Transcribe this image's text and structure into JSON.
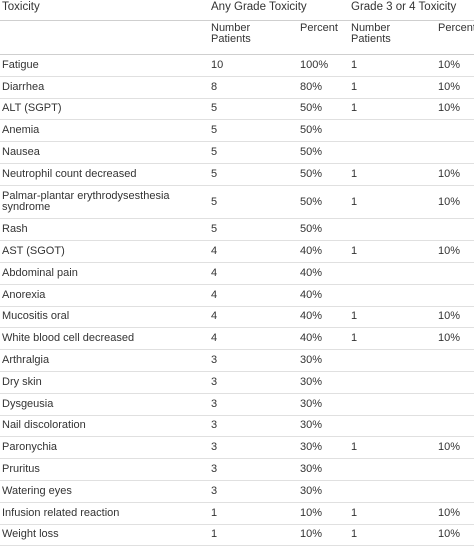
{
  "headers": {
    "toxicity": "Toxicity",
    "group_any": "Any Grade Toxicity",
    "group_grade34": "Grade 3 or 4 Toxicity",
    "number_patients": "Number Patients",
    "percent": "Percent"
  },
  "rows": [
    {
      "toxicity": "Fatigue",
      "any_n": "10",
      "any_pct": "100%",
      "g34_n": "1",
      "g34_pct": "10%"
    },
    {
      "toxicity": "Diarrhea",
      "any_n": "8",
      "any_pct": "80%",
      "g34_n": "1",
      "g34_pct": "10%"
    },
    {
      "toxicity": "ALT (SGPT)",
      "any_n": "5",
      "any_pct": "50%",
      "g34_n": "1",
      "g34_pct": "10%"
    },
    {
      "toxicity": "Anemia",
      "any_n": "5",
      "any_pct": "50%",
      "g34_n": "",
      "g34_pct": ""
    },
    {
      "toxicity": "Nausea",
      "any_n": "5",
      "any_pct": "50%",
      "g34_n": "",
      "g34_pct": ""
    },
    {
      "toxicity": "Neutrophil count decreased",
      "any_n": "5",
      "any_pct": "50%",
      "g34_n": "1",
      "g34_pct": "10%"
    },
    {
      "toxicity": "Palmar-plantar erythrodysesthesia syndrome",
      "any_n": "5",
      "any_pct": "50%",
      "g34_n": "1",
      "g34_pct": "10%"
    },
    {
      "toxicity": "Rash",
      "any_n": "5",
      "any_pct": "50%",
      "g34_n": "",
      "g34_pct": ""
    },
    {
      "toxicity": "AST (SGOT)",
      "any_n": "4",
      "any_pct": "40%",
      "g34_n": "1",
      "g34_pct": "10%"
    },
    {
      "toxicity": "Abdominal pain",
      "any_n": "4",
      "any_pct": "40%",
      "g34_n": "",
      "g34_pct": ""
    },
    {
      "toxicity": "Anorexia",
      "any_n": "4",
      "any_pct": "40%",
      "g34_n": "",
      "g34_pct": ""
    },
    {
      "toxicity": "Mucositis oral",
      "any_n": "4",
      "any_pct": "40%",
      "g34_n": "1",
      "g34_pct": "10%"
    },
    {
      "toxicity": "White blood cell decreased",
      "any_n": "4",
      "any_pct": "40%",
      "g34_n": "1",
      "g34_pct": "10%"
    },
    {
      "toxicity": "Arthralgia",
      "any_n": "3",
      "any_pct": "30%",
      "g34_n": "",
      "g34_pct": ""
    },
    {
      "toxicity": "Dry skin",
      "any_n": "3",
      "any_pct": "30%",
      "g34_n": "",
      "g34_pct": ""
    },
    {
      "toxicity": "Dysgeusia",
      "any_n": "3",
      "any_pct": "30%",
      "g34_n": "",
      "g34_pct": ""
    },
    {
      "toxicity": "Nail discoloration",
      "any_n": "3",
      "any_pct": "30%",
      "g34_n": "",
      "g34_pct": ""
    },
    {
      "toxicity": "Paronychia",
      "any_n": "3",
      "any_pct": "30%",
      "g34_n": "1",
      "g34_pct": "10%"
    },
    {
      "toxicity": "Pruritus",
      "any_n": "3",
      "any_pct": "30%",
      "g34_n": "",
      "g34_pct": ""
    },
    {
      "toxicity": "Watering eyes",
      "any_n": "3",
      "any_pct": "30%",
      "g34_n": "",
      "g34_pct": ""
    },
    {
      "toxicity": "Infusion related reaction",
      "any_n": "1",
      "any_pct": "10%",
      "g34_n": "1",
      "g34_pct": "10%"
    },
    {
      "toxicity": "Weight loss",
      "any_n": "1",
      "any_pct": "10%",
      "g34_n": "1",
      "g34_pct": "10%"
    }
  ]
}
